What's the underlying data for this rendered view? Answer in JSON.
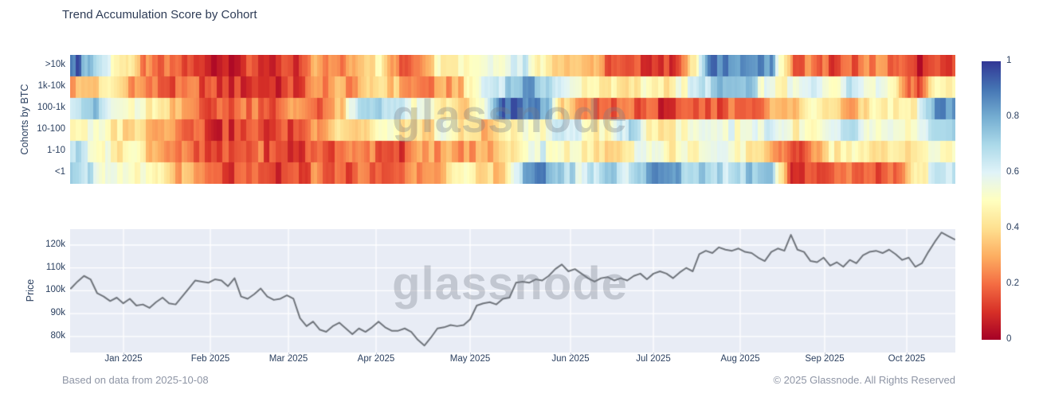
{
  "page": {
    "title": "Trend Accumulation Score by Cohort"
  },
  "watermark": {
    "text": "glassnode"
  },
  "footer": {
    "left": "Based on data from 2025-10-08",
    "right": "© 2025 Glassnode. All Rights Reserved"
  },
  "colors": {
    "background": "#ffffff",
    "panel_background": "#e8ecf5",
    "price_line": "#70757c",
    "grid_line": "#ffffff",
    "axis_text": "#2a3f5f",
    "muted_text": "#8e95a5",
    "colormap_rdylbu": [
      "#a50026",
      "#d73027",
      "#f46d43",
      "#fdae61",
      "#fee090",
      "#ffffbf",
      "#e0f3f8",
      "#abd9e9",
      "#74add1",
      "#4575b4",
      "#313695"
    ]
  },
  "chart_data": [
    {
      "type": "heatmap",
      "title": "Trend Accumulation Score by Cohort",
      "y_axis_title": "Cohorts by BTC",
      "categories_y": [
        ">10k",
        "1k-10k",
        "100-1k",
        "10-100",
        "1-10",
        "<1"
      ],
      "x_range": [
        "2024-12-14",
        "2025-10-08"
      ],
      "sampling": "weekly accumulation score samples per cohort, 0 = distribution (red), 1 = accumulation (blue)",
      "colorbar": {
        "min": 0,
        "max": 1,
        "ticks": [
          "1",
          "0.8",
          "0.6",
          "0.4",
          "0.2",
          "0"
        ],
        "colormap": "RdYlBu"
      },
      "series": [
        {
          "name": ">10k",
          "values": [
            0.97,
            0.75,
            0.55,
            0.35,
            0.15,
            0.2,
            0.1,
            0.08,
            0.1,
            0.12,
            0.1,
            0.07,
            0.3,
            0.2,
            0.4,
            0.45,
            0.15,
            0.3,
            0.5,
            0.5,
            0.55,
            0.6,
            0.65,
            0.45,
            0.4,
            0.35,
            0.2,
            0.1,
            0.15,
            0.1,
            0.3,
            0.85,
            0.9,
            0.85,
            0.8,
            0.2,
            0.25,
            0.12,
            0.2,
            0.25,
            0.2,
            0.07,
            0.1
          ]
        },
        {
          "name": "1k-10k",
          "values": [
            0.3,
            0.35,
            0.45,
            0.3,
            0.2,
            0.15,
            0.2,
            0.12,
            0.1,
            0.12,
            0.1,
            0.12,
            0.25,
            0.3,
            0.25,
            0.45,
            0.3,
            0.2,
            0.25,
            0.35,
            0.6,
            0.7,
            0.8,
            0.75,
            0.55,
            0.5,
            0.45,
            0.35,
            0.5,
            0.45,
            0.55,
            0.7,
            0.75,
            0.7,
            0.5,
            0.5,
            0.6,
            0.55,
            0.65,
            0.6,
            0.5,
            0.12,
            0.5
          ]
        },
        {
          "name": "100-1k",
          "values": [
            0.7,
            0.75,
            0.55,
            0.5,
            0.45,
            0.3,
            0.25,
            0.15,
            0.2,
            0.25,
            0.15,
            0.3,
            0.2,
            0.3,
            0.65,
            0.75,
            0.6,
            0.5,
            0.45,
            0.35,
            0.5,
            0.9,
            0.9,
            0.8,
            0.35,
            0.2,
            0.15,
            0.25,
            0.15,
            0.1,
            0.12,
            0.15,
            0.2,
            0.2,
            0.3,
            0.3,
            0.5,
            0.45,
            0.3,
            0.5,
            0.45,
            0.5,
            0.85
          ]
        },
        {
          "name": "10-100",
          "values": [
            0.5,
            0.5,
            0.45,
            0.4,
            0.35,
            0.3,
            0.2,
            0.1,
            0.12,
            0.15,
            0.12,
            0.15,
            0.3,
            0.45,
            0.35,
            0.5,
            0.45,
            0.35,
            0.5,
            0.4,
            0.35,
            0.4,
            0.5,
            0.55,
            0.65,
            0.5,
            0.45,
            0.7,
            0.5,
            0.45,
            0.5,
            0.6,
            0.55,
            0.55,
            0.65,
            0.5,
            0.45,
            0.55,
            0.65,
            0.5,
            0.5,
            0.5,
            0.65
          ]
        },
        {
          "name": "1-10",
          "values": [
            0.7,
            0.6,
            0.45,
            0.5,
            0.35,
            0.25,
            0.15,
            0.1,
            0.15,
            0.2,
            0.12,
            0.1,
            0.2,
            0.15,
            0.3,
            0.2,
            0.15,
            0.25,
            0.3,
            0.25,
            0.3,
            0.35,
            0.55,
            0.6,
            0.5,
            0.45,
            0.35,
            0.5,
            0.6,
            0.45,
            0.5,
            0.55,
            0.5,
            0.45,
            0.35,
            0.08,
            0.3,
            0.45,
            0.5,
            0.35,
            0.45,
            0.45,
            0.5
          ]
        },
        {
          "name": "<1",
          "values": [
            0.8,
            0.65,
            0.5,
            0.45,
            0.5,
            0.35,
            0.25,
            0.15,
            0.12,
            0.15,
            0.1,
            0.12,
            0.25,
            0.15,
            0.2,
            0.15,
            0.2,
            0.3,
            0.35,
            0.45,
            0.35,
            0.4,
            0.75,
            0.85,
            0.7,
            0.6,
            0.75,
            0.65,
            0.8,
            0.85,
            0.7,
            0.75,
            0.65,
            0.75,
            0.8,
            0.1,
            0.12,
            0.2,
            0.25,
            0.15,
            0.2,
            0.45,
            0.6
          ]
        }
      ]
    },
    {
      "type": "line",
      "y_axis_title": "Price",
      "unit": "USD thousands",
      "y_ticks": [
        "120k",
        "110k",
        "100k",
        "90k",
        "80k"
      ],
      "y_tick_values": [
        120,
        110,
        100,
        90,
        80
      ],
      "ylim": [
        72.5,
        127
      ],
      "x_ticks": [
        "Jan 2025",
        "Feb 2025",
        "Mar 2025",
        "Apr 2025",
        "May 2025",
        "Jun 2025",
        "Jul 2025",
        "Aug 2025",
        "Sep 2025",
        "Oct 2025"
      ],
      "values": [
        101,
        104,
        106.5,
        105,
        99,
        97.5,
        95.5,
        97,
        94.5,
        96.5,
        93.5,
        94,
        92.5,
        95,
        97,
        94.5,
        94,
        97.5,
        101,
        104.5,
        104,
        103.5,
        105,
        104.5,
        102,
        105.5,
        97.5,
        96.5,
        98.5,
        101,
        97.5,
        96,
        96.5,
        98,
        96.5,
        88,
        84.5,
        86.5,
        83,
        82,
        84.5,
        86,
        83.5,
        81,
        83.5,
        82,
        84,
        86.5,
        84,
        82.5,
        82.5,
        83.5,
        82,
        78.5,
        76,
        79.5,
        83.5,
        84,
        85,
        84.5,
        85,
        87.5,
        93.5,
        94.5,
        95,
        94,
        96.5,
        97,
        103.5,
        104,
        103.5,
        105,
        104.5,
        106.5,
        109.5,
        111.5,
        108.5,
        109.5,
        107.5,
        105.5,
        104,
        105.5,
        106,
        104.5,
        105.5,
        104.5,
        106.5,
        107.5,
        105,
        107.5,
        108.5,
        107.5,
        105.5,
        108,
        110,
        108.5,
        116,
        117.5,
        116.5,
        119,
        118,
        117.5,
        118.5,
        117,
        116.5,
        114.5,
        113,
        117,
        118.5,
        117.5,
        124.5,
        118,
        117,
        113,
        112.5,
        114.5,
        111,
        112.5,
        110.5,
        113.5,
        112,
        115.5,
        117,
        117.5,
        116.5,
        118,
        116,
        113.5,
        114.5,
        110.5,
        112,
        117,
        121.5,
        125.5,
        124,
        122.5
      ]
    }
  ]
}
